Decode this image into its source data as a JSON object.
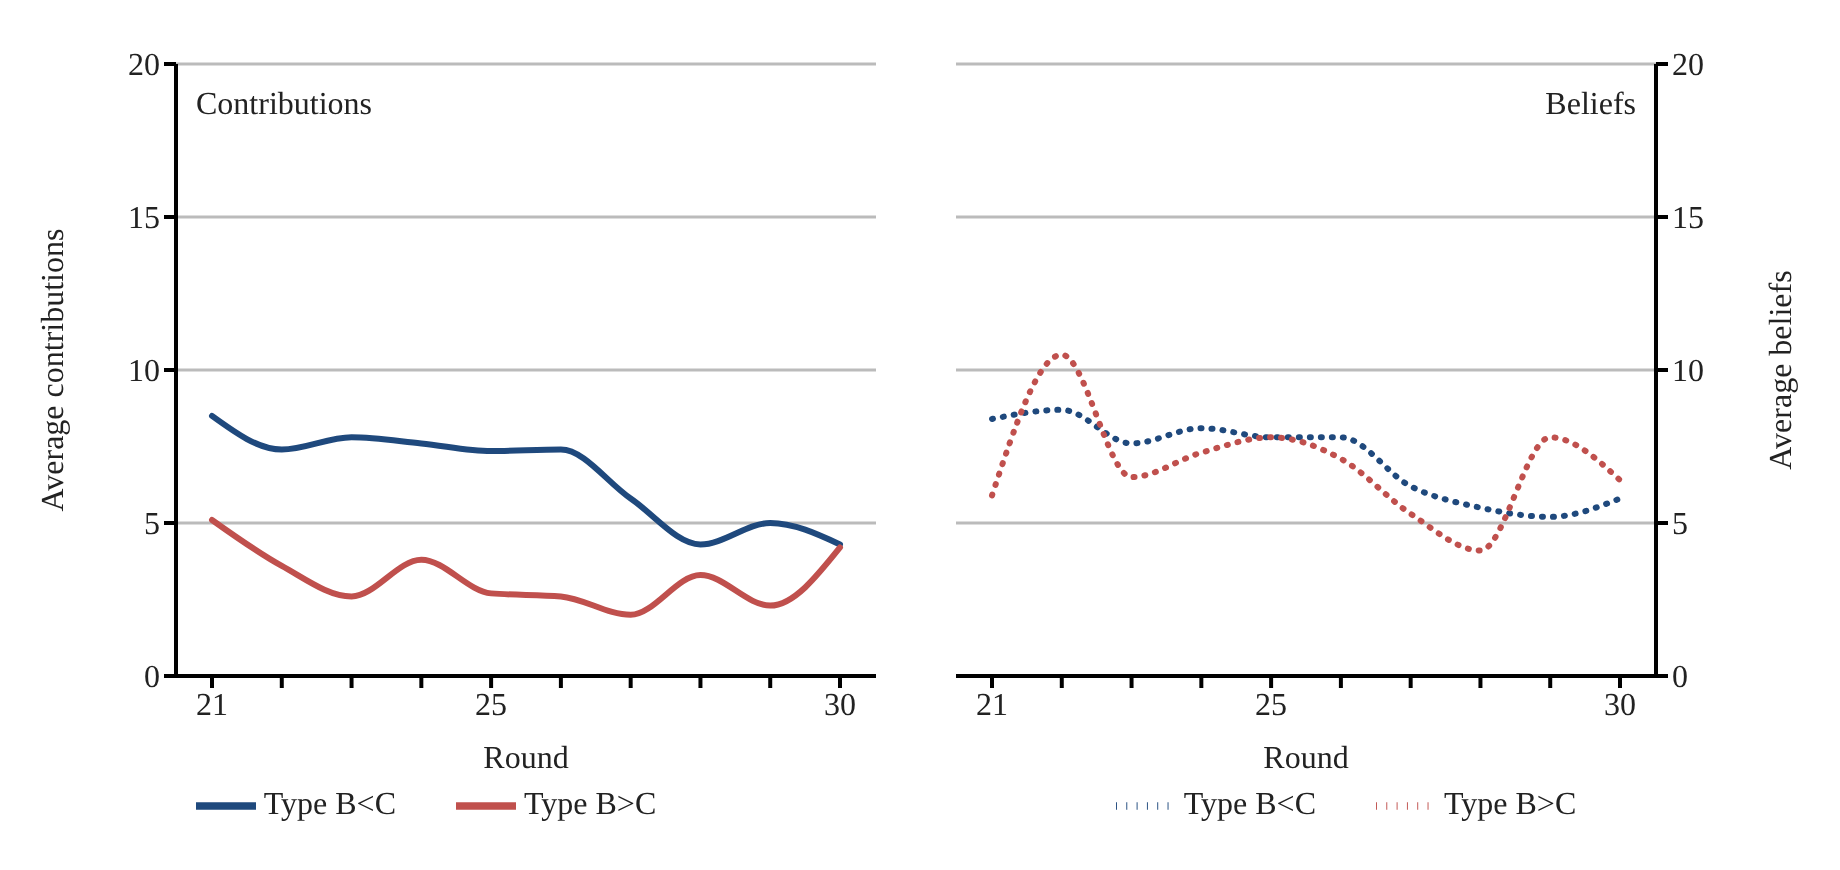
{
  "chart_data": [
    {
      "type": "line",
      "title": "Contributions",
      "xlabel": "Round",
      "ylabel": "Average contributions",
      "categories": [
        "21",
        null,
        null,
        null,
        "25",
        null,
        null,
        null,
        null,
        "30"
      ],
      "series": [
        {
          "name": "Type B<C",
          "color": "#1f497d",
          "values": [
            8.5,
            7.4,
            7.8,
            7.6,
            7.35,
            7.4,
            5.8,
            4.3,
            5.0,
            4.3
          ]
        },
        {
          "name": "Type B>C",
          "color": "#c0504d",
          "values": [
            5.1,
            3.6,
            2.6,
            3.8,
            2.7,
            2.6,
            2.0,
            3.3,
            2.3,
            4.2
          ]
        }
      ],
      "ylim": [
        0,
        20
      ],
      "yticks": [
        0,
        5,
        10,
        15,
        20
      ],
      "grid": "y",
      "legend": "bottom",
      "line_style": "solid",
      "marker": "none"
    },
    {
      "type": "line",
      "title": "Beliefs",
      "xlabel": "Round",
      "y2label": "Average beliefs",
      "categories": [
        "21",
        null,
        null,
        null,
        "25",
        null,
        null,
        null,
        null,
        "30"
      ],
      "series": [
        {
          "name": "Type B<C",
          "color": "#1f497d",
          "axis": "y2",
          "values": [
            8.4,
            8.7,
            7.6,
            8.1,
            7.8,
            7.8,
            6.2,
            5.5,
            5.2,
            5.8
          ]
        },
        {
          "name": "Type B>C",
          "color": "#c0504d",
          "axis": "y2",
          "values": [
            5.9,
            10.5,
            6.5,
            7.3,
            7.8,
            7.1,
            5.3,
            4.1,
            7.8,
            6.4
          ]
        }
      ],
      "y2lim": [
        0,
        20
      ],
      "y2ticks": [
        0,
        5,
        10,
        15,
        20
      ],
      "grid": "y",
      "legend": "bottom",
      "line_style": "dotted",
      "marker": "none"
    }
  ]
}
